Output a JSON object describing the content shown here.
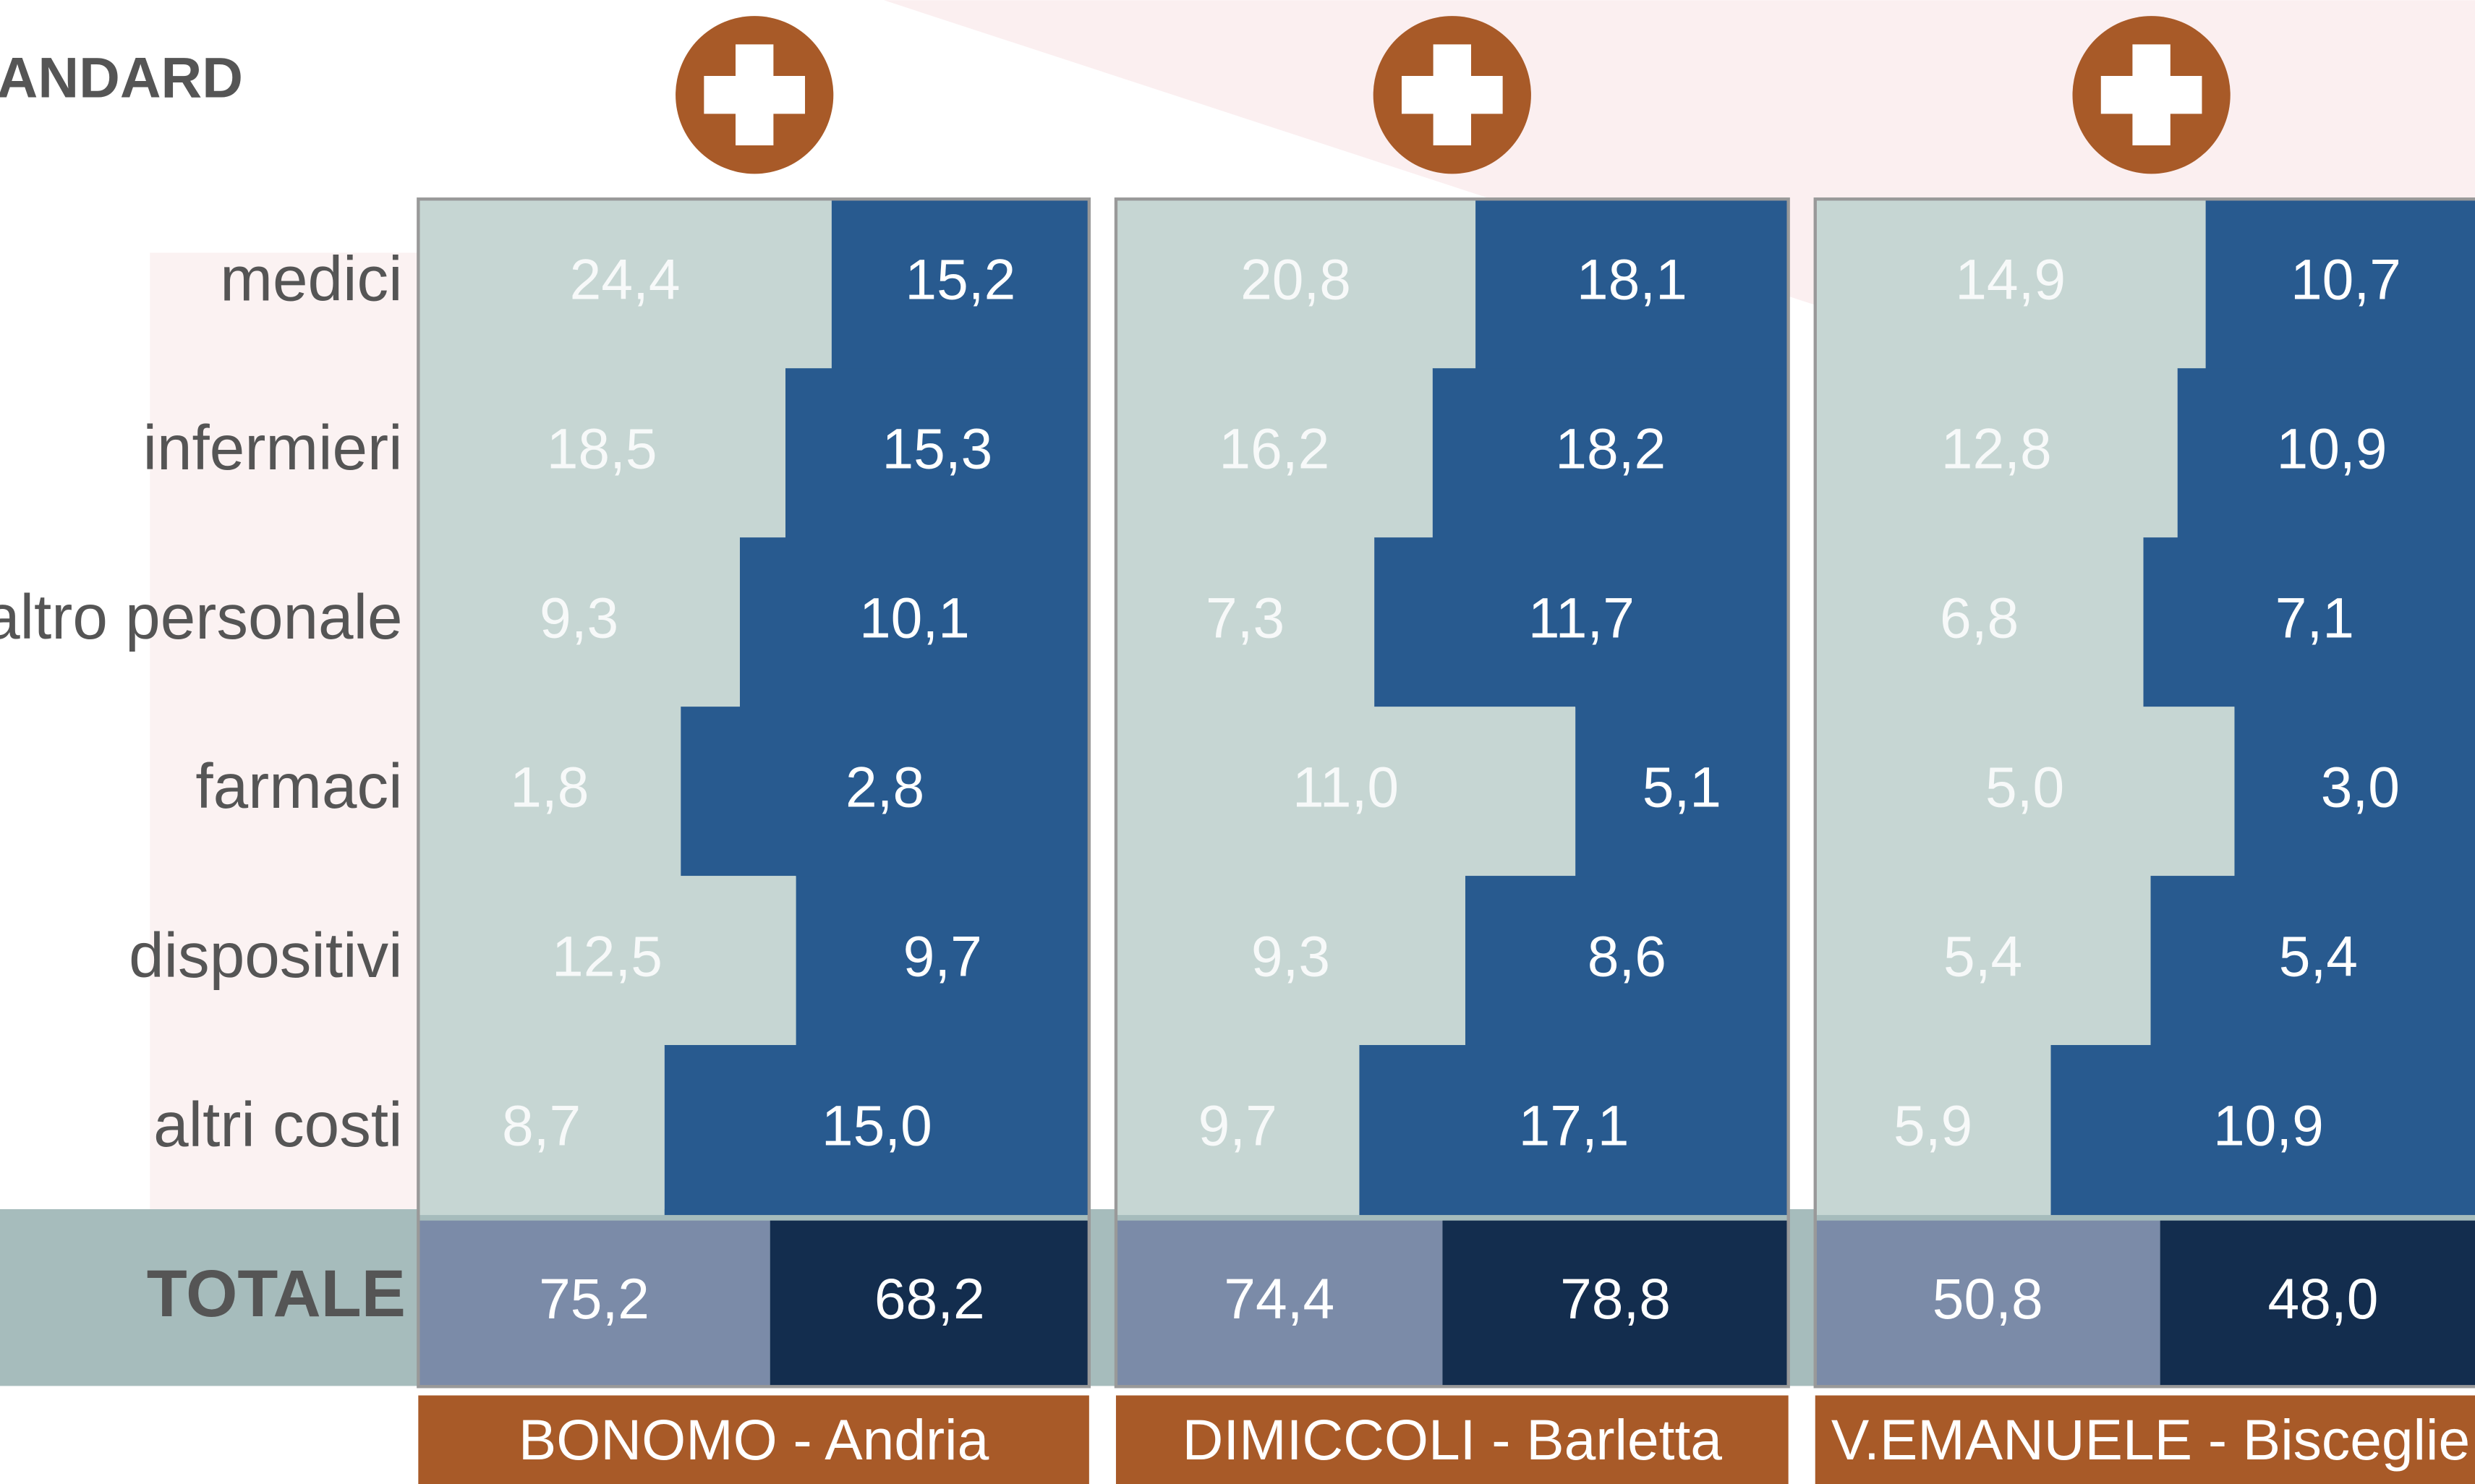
{
  "header": "ANDARD",
  "row_labels": [
    "medici",
    "infermieri",
    "altro personale",
    "farmaci",
    "dispositivi",
    "altri costi"
  ],
  "total_label": "TOTALE",
  "chart_data": [
    {
      "type": "bar",
      "title": "BONOMO - Andria",
      "series": [
        {
          "color": "#c6d6d3",
          "values": [
            24.4,
            18.5,
            9.3,
            1.8,
            12.5,
            8.7
          ],
          "value_labels": [
            "24,4",
            "18,5",
            "9,3",
            "1,8",
            "12,5",
            "8,7"
          ]
        },
        {
          "color": "#285a8f",
          "values": [
            15.2,
            15.3,
            10.1,
            2.8,
            9.7,
            15.0
          ],
          "value_labels": [
            "15,2",
            "15,3",
            "10,1",
            "2,8",
            "9,7",
            "15,0"
          ]
        }
      ],
      "totals": {
        "colors": [
          "#7b8ba8",
          "#132d4e"
        ],
        "values": [
          75.2,
          68.2
        ],
        "value_labels": [
          "75,2",
          "68,2"
        ]
      }
    },
    {
      "type": "bar",
      "title": "DIMICCOLI - Barletta",
      "series": [
        {
          "color": "#c6d6d3",
          "values": [
            20.8,
            16.2,
            7.3,
            11.0,
            9.3,
            9.7
          ],
          "value_labels": [
            "20,8",
            "16,2",
            "7,3",
            "11,0",
            "9,3",
            "9,7"
          ]
        },
        {
          "color": "#285a8f",
          "values": [
            18.1,
            18.2,
            11.7,
            5.1,
            8.6,
            17.1
          ],
          "value_labels": [
            "18,1",
            "18,2",
            "11,7",
            "5,1",
            "8,6",
            "17,1"
          ]
        }
      ],
      "totals": {
        "colors": [
          "#7b8ba8",
          "#132d4e"
        ],
        "values": [
          74.4,
          78.8
        ],
        "value_labels": [
          "74,4",
          "78,8"
        ]
      }
    },
    {
      "type": "bar",
      "title": "V.EMANUELE - Bisceglie",
      "series": [
        {
          "color": "#c6d6d3",
          "values": [
            14.9,
            12.8,
            6.8,
            5.0,
            5.4,
            5.9
          ],
          "value_labels": [
            "14,9",
            "12,8",
            "6,8",
            "5,0",
            "5,4",
            "5,9"
          ]
        },
        {
          "color": "#285a8f",
          "values": [
            10.7,
            10.9,
            7.1,
            3.0,
            5.4,
            10.9
          ],
          "value_labels": [
            "10,7",
            "10,9",
            "7,1",
            "3,0",
            "5,4",
            "10,9"
          ]
        }
      ],
      "totals": {
        "colors": [
          "#7b8ba8",
          "#132d4e"
        ],
        "values": [
          50.8,
          48.0
        ],
        "value_labels": [
          "50,8",
          "48,0"
        ]
      }
    }
  ]
}
